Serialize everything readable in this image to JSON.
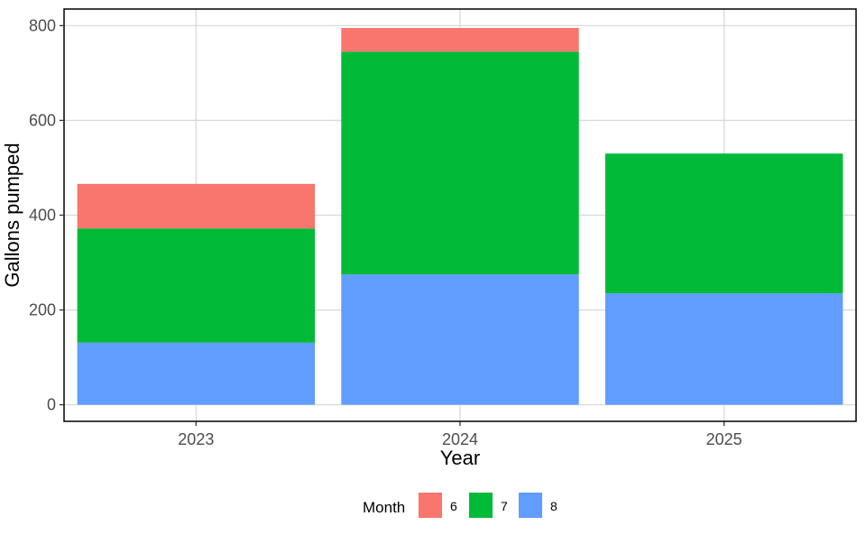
{
  "chart_data": {
    "type": "bar",
    "stacked": true,
    "categories": [
      "2023",
      "2024",
      "2025"
    ],
    "series": [
      {
        "name": "8",
        "values": [
          131,
          275,
          235
        ],
        "color": "#619CFF"
      },
      {
        "name": "7",
        "values": [
          241,
          470,
          295
        ],
        "color": "#00BA38"
      },
      {
        "name": "6",
        "values": [
          94,
          50,
          0
        ],
        "color": "#F8766D"
      }
    ],
    "xlabel": "Year",
    "ylabel": "Gallons pumped",
    "ylim": [
      -35,
      835
    ],
    "yticks": [
      0,
      200,
      400,
      600,
      800
    ],
    "grid": true,
    "legend": {
      "title": "Month",
      "position": "bottom",
      "items": [
        {
          "label": "6",
          "color": "#F8766D"
        },
        {
          "label": "7",
          "color": "#00BA38"
        },
        {
          "label": "8",
          "color": "#619CFF"
        }
      ]
    }
  }
}
